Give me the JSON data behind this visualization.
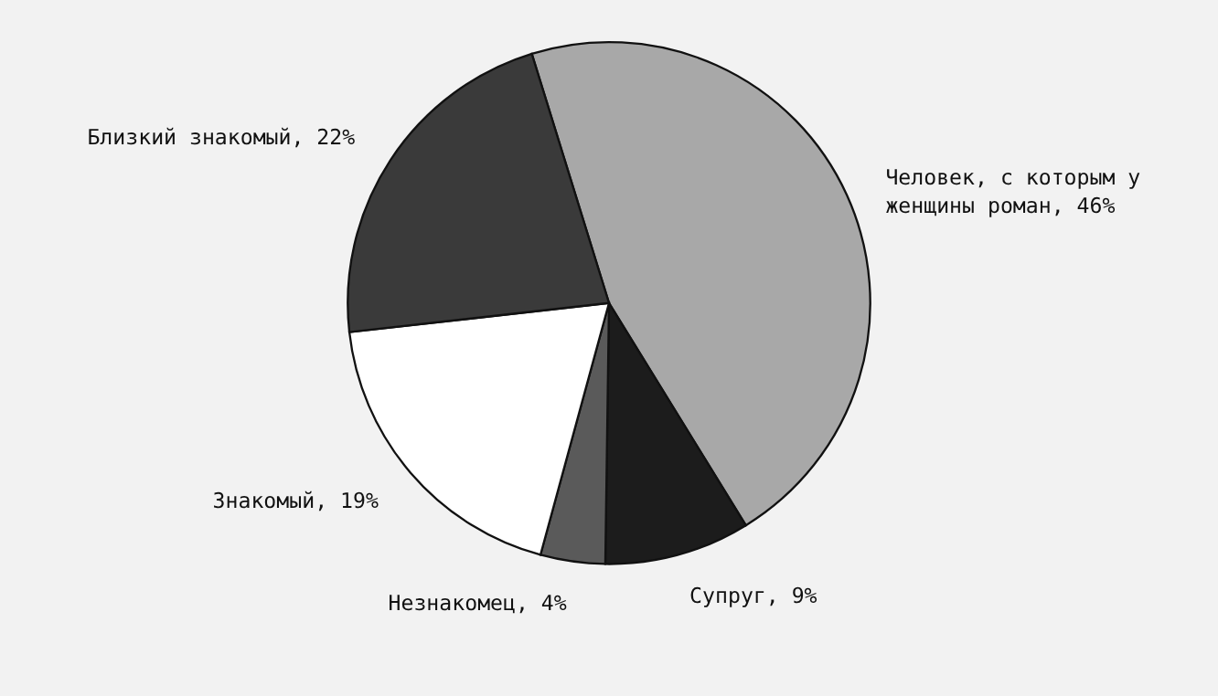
{
  "chart_data": {
    "type": "pie",
    "categories": [
      "Человек, с которым у женщины роман",
      "Супруг",
      "Незнакомец",
      "Знакомый",
      "Близкий знакомый"
    ],
    "values": [
      46,
      9,
      4,
      19,
      22
    ],
    "value_labels": [
      "46%",
      "9%",
      "4%",
      "19%",
      "22%"
    ],
    "colors": [
      "#a8a8a8",
      "#1c1c1c",
      "#5a5a5a",
      "#ffffff",
      "#3a3a3a"
    ]
  }
}
